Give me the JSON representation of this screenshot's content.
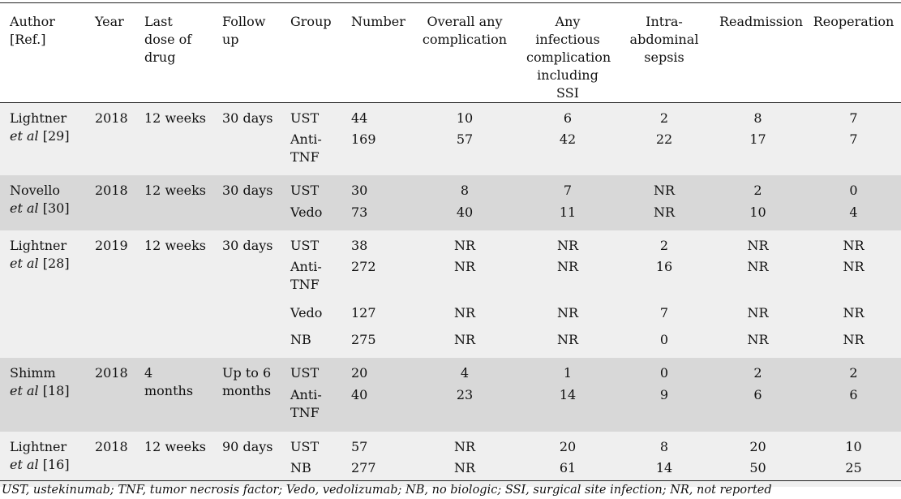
{
  "headers": [
    "Author [Ref.]",
    "Year",
    "Last dose of drug",
    "Follow up",
    "Group",
    "Number",
    "Overall any complication",
    "Any infectious complication including SSI",
    "Intra-abdominal sepsis",
    "Readmission",
    "Reoperation"
  ],
  "header_lines": [
    [
      "Author",
      "[Ref.]"
    ],
    [
      "Year"
    ],
    [
      "Last",
      "dose of",
      "drug"
    ],
    [
      "Follow",
      "up"
    ],
    [
      "Group"
    ],
    [
      "Number"
    ],
    [
      "Overall any",
      "complication"
    ],
    [
      "Any",
      "infectious",
      "complication",
      "including SSI"
    ],
    [
      "Intra-",
      "abdominal",
      "sepsis"
    ],
    [
      "Readmission"
    ],
    [
      "Reoperation"
    ]
  ],
  "studies": [
    {
      "author": "Lightner",
      "etal": "et al",
      "ref": "[29]",
      "year": "2018",
      "last_dose": [
        "12 weeks"
      ],
      "follow_up": [
        "30 days"
      ],
      "rows": [
        {
          "group": [
            "UST"
          ],
          "values": [
            "44",
            "10",
            "6",
            "2",
            "8",
            "7"
          ]
        },
        {
          "group": [
            "Anti-",
            "TNF"
          ],
          "values": [
            "169",
            "57",
            "42",
            "22",
            "17",
            "7"
          ]
        }
      ]
    },
    {
      "author": "Novello",
      "etal": "et al",
      "ref": "[30]",
      "year": "2018",
      "last_dose": [
        "12 weeks"
      ],
      "follow_up": [
        "30 days"
      ],
      "rows": [
        {
          "group": [
            "UST"
          ],
          "values": [
            "30",
            "8",
            "7",
            "NR",
            "2",
            "0"
          ]
        },
        {
          "group": [
            "Vedo"
          ],
          "values": [
            "73",
            "40",
            "11",
            "NR",
            "10",
            "4"
          ]
        }
      ]
    },
    {
      "author": "Lightner",
      "etal": "et al",
      "ref": "[28]",
      "year": "2019",
      "last_dose": [
        "12 weeks"
      ],
      "follow_up": [
        "30 days"
      ],
      "rows": [
        {
          "group": [
            "UST"
          ],
          "values": [
            "38",
            "NR",
            "NR",
            "2",
            "NR",
            "NR"
          ]
        },
        {
          "group": [
            "Anti-",
            "TNF"
          ],
          "values": [
            "272",
            "NR",
            "NR",
            "16",
            "NR",
            "NR"
          ]
        },
        {
          "group": [
            "Vedo"
          ],
          "values": [
            "127",
            "NR",
            "NR",
            "7",
            "NR",
            "NR"
          ]
        },
        {
          "group": [
            "NB"
          ],
          "values": [
            "275",
            "NR",
            "NR",
            "0",
            "NR",
            "NR"
          ]
        }
      ]
    },
    {
      "author": "Shimm",
      "etal": "et al",
      "ref": "[18]",
      "year": "2018",
      "last_dose": [
        "4",
        "months"
      ],
      "follow_up": [
        "Up to 6",
        "months"
      ],
      "rows": [
        {
          "group": [
            "UST"
          ],
          "values": [
            "20",
            "4",
            "1",
            "0",
            "2",
            "2"
          ]
        },
        {
          "group": [
            "Anti-",
            "TNF"
          ],
          "values": [
            "40",
            "23",
            "14",
            "9",
            "6",
            "6"
          ]
        }
      ]
    },
    {
      "author": "Lightner",
      "etal": "et al",
      "ref": "[16]",
      "year": "2018",
      "last_dose": [
        "12 weeks"
      ],
      "follow_up": [
        "90 days"
      ],
      "rows": [
        {
          "group": [
            "UST"
          ],
          "values": [
            "57",
            "NR",
            "20",
            "8",
            "20",
            "10"
          ]
        },
        {
          "group": [
            "NB"
          ],
          "values": [
            "277",
            "NR",
            "61",
            "14",
            "50",
            "25"
          ]
        }
      ]
    }
  ],
  "row_heights": {
    "0": [
      33,
      56
    ],
    "1": [
      34,
      34
    ],
    "2": [
      33,
      57,
      33,
      34
    ],
    "3": [
      34,
      57
    ],
    "4": [
      33,
      35
    ]
  },
  "footnote": "UST, ustekinumab; TNF, tumor necrosis factor; Vedo, vedolizumab; NB, no biologic; SSI, surgical site infection; NR, not reported",
  "colors": {
    "shade_light": "#efefef",
    "shade_dark": "#d8d8d8"
  }
}
